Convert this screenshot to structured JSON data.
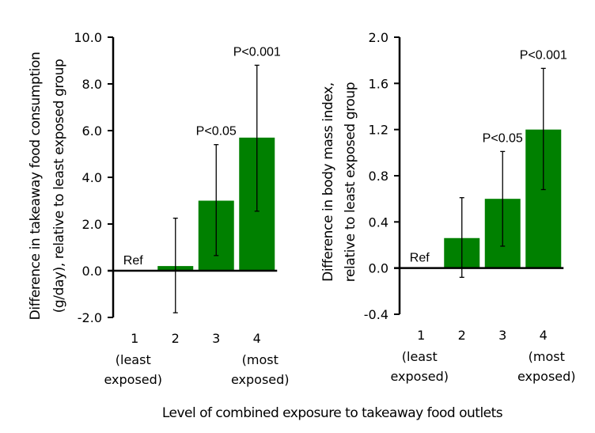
{
  "chart_data": [
    {
      "type": "bar",
      "ylabel_lines": [
        "Difference in takeaway food consumption",
        "(g/day), relative to least exposed group"
      ],
      "ylim": [
        -2.0,
        10.0
      ],
      "yticks": [
        "-2.0",
        "0.0",
        "2.0",
        "4.0",
        "6.0",
        "8.0",
        "10.0"
      ],
      "ytick_values": [
        -2,
        0,
        2,
        4,
        6,
        8,
        10
      ],
      "categories": [
        "1",
        "2",
        "3",
        "4"
      ],
      "category_sublabels": [
        [
          "(least",
          "exposed)"
        ],
        [],
        [],
        [
          "(most",
          "exposed)"
        ]
      ],
      "values": [
        0,
        0.2,
        3.0,
        5.7
      ],
      "ci_lower": [
        null,
        -1.8,
        0.65,
        2.55
      ],
      "ci_upper": [
        null,
        2.25,
        5.4,
        8.8
      ],
      "annotations": [
        "Ref",
        "",
        "P<0.05",
        "P<0.001"
      ]
    },
    {
      "type": "bar",
      "ylabel_lines": [
        "Difference in body mass index,",
        "relative to least exposed group"
      ],
      "ylim": [
        -0.4,
        2.0
      ],
      "yticks": [
        "-0.4",
        "0.0",
        "0.4",
        "0.8",
        "1.2",
        "1.6",
        "2.0"
      ],
      "ytick_values": [
        -0.4,
        0,
        0.4,
        0.8,
        1.2,
        1.6,
        2.0
      ],
      "categories": [
        "1",
        "2",
        "3",
        "4"
      ],
      "category_sublabels": [
        [
          "(least",
          "exposed)"
        ],
        [],
        [],
        [
          "(most",
          "exposed)"
        ]
      ],
      "values": [
        0,
        0.26,
        0.6,
        1.2
      ],
      "ci_lower": [
        null,
        -0.08,
        0.19,
        0.68
      ],
      "ci_upper": [
        null,
        0.61,
        1.01,
        1.73
      ],
      "annotations": [
        "Ref",
        "",
        "P<0.05",
        "P<0.001"
      ]
    }
  ],
  "shared_xlabel": "Level of combined exposure to takeaway food outlets",
  "colors": {
    "bar": "#008000",
    "axis": "#000000"
  }
}
